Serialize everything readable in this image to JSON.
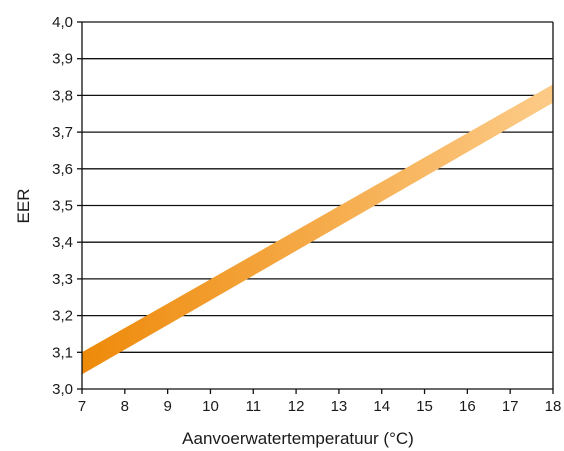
{
  "chart_data": {
    "type": "line",
    "xlabel": "Aanvoerwatertemperatuur (°C)",
    "ylabel": "EER",
    "xlim": [
      7,
      18
    ],
    "ylim": [
      3.0,
      4.0
    ],
    "x_ticks": [
      7,
      8,
      9,
      10,
      11,
      12,
      13,
      14,
      15,
      16,
      17,
      18
    ],
    "x_tick_labels": [
      "7",
      "8",
      "9",
      "10",
      "11",
      "12",
      "13",
      "14",
      "15",
      "16",
      "17",
      "18"
    ],
    "y_ticks": [
      3.0,
      3.1,
      3.2,
      3.3,
      3.4,
      3.5,
      3.6,
      3.7,
      3.8,
      3.9,
      4.0
    ],
    "y_tick_labels": [
      "3,0",
      "3,1",
      "3,2",
      "3,3",
      "3,4",
      "3,5",
      "3,6",
      "3,7",
      "3,8",
      "3,9",
      "4,0"
    ],
    "grid": "horizontal",
    "series": [
      {
        "type": "band",
        "x": [
          7,
          18
        ],
        "y_lower": [
          3.04,
          3.78
        ],
        "y_upper": [
          3.1,
          3.83
        ],
        "color_start": "#EE8A0A",
        "color_end": "#FCCB88"
      }
    ]
  }
}
